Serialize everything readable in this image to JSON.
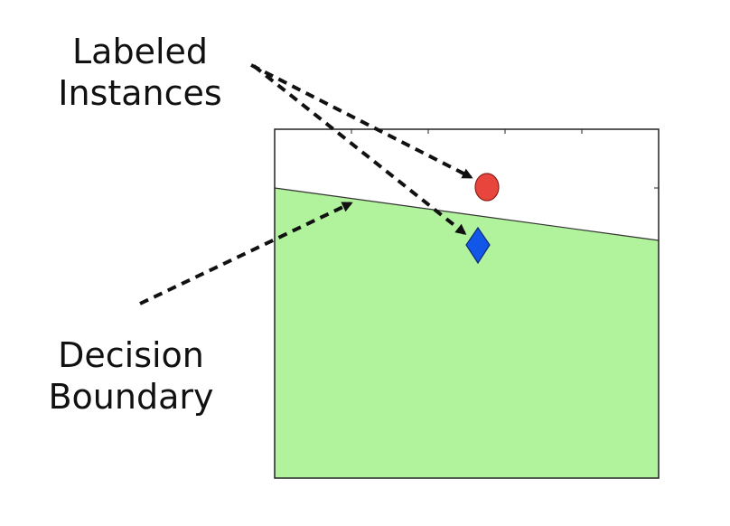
{
  "labels": {
    "instances": [
      "Labeled",
      "Instances"
    ],
    "boundary": [
      "Decision",
      "Boundary"
    ]
  },
  "colors": {
    "positive_region": "#b1f29c",
    "negative_region": "#ffffff",
    "circle_instance": "#e8463c",
    "diamond_instance": "#1357e8",
    "arrow": "#111111",
    "frame": "#222222"
  },
  "markers": {
    "circle": "circle",
    "diamond": "diamond"
  }
}
